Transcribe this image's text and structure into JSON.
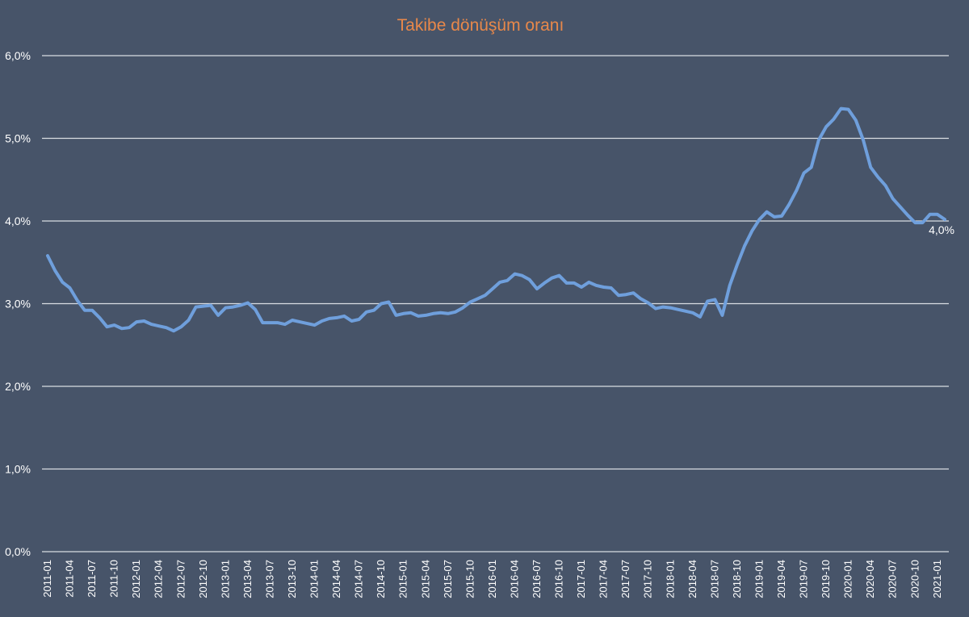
{
  "chart_data": {
    "type": "line",
    "title": "Takibe dönüşüm oranı",
    "title_color": "#e8884a",
    "line_color": "#6f9fdc",
    "background": "#475469",
    "grid": true,
    "ylim": [
      0,
      6
    ],
    "y_ticks": [
      0,
      1,
      2,
      3,
      4,
      5,
      6
    ],
    "y_tick_labels": [
      "0,0%",
      "1,0%",
      "2,0%",
      "3,0%",
      "4,0%",
      "5,0%",
      "6,0%"
    ],
    "x_tick_labels": [
      "2011-01",
      "2011-04",
      "2011-07",
      "2011-10",
      "2012-01",
      "2012-04",
      "2012-07",
      "2012-10",
      "2013-01",
      "2013-04",
      "2013-07",
      "2013-10",
      "2014-01",
      "2014-04",
      "2014-07",
      "2014-10",
      "2015-01",
      "2015-04",
      "2015-07",
      "2015-10",
      "2016-01",
      "2016-04",
      "2016-07",
      "2016-10",
      "2017-01",
      "2017-04",
      "2017-07",
      "2017-10",
      "2018-01",
      "2018-04",
      "2018-07",
      "2018-10",
      "2019-01",
      "2019-04",
      "2019-07",
      "2019-10",
      "2020-01",
      "2020-04",
      "2020-07",
      "2020-10",
      "2021-01"
    ],
    "start_month": "2011-01",
    "series": [
      {
        "values": [
          3.58,
          3.4,
          3.26,
          3.19,
          3.04,
          2.92,
          2.92,
          2.83,
          2.72,
          2.74,
          2.7,
          2.71,
          2.78,
          2.79,
          2.75,
          2.73,
          2.71,
          2.67,
          2.72,
          2.8,
          2.96,
          2.97,
          2.98,
          2.86,
          2.95,
          2.96,
          2.98,
          3.01,
          2.93,
          2.77,
          2.77,
          2.77,
          2.75,
          2.8,
          2.78,
          2.76,
          2.74,
          2.79,
          2.82,
          2.83,
          2.85,
          2.79,
          2.81,
          2.9,
          2.92,
          3.0,
          3.02,
          2.86,
          2.88,
          2.89,
          2.85,
          2.86,
          2.88,
          2.89,
          2.88,
          2.9,
          2.95,
          3.02,
          3.06,
          3.1,
          3.18,
          3.26,
          3.28,
          3.36,
          3.34,
          3.29,
          3.18,
          3.25,
          3.31,
          3.34,
          3.25,
          3.25,
          3.2,
          3.26,
          3.22,
          3.2,
          3.19,
          3.1,
          3.11,
          3.13,
          3.06,
          3.01,
          2.94,
          2.96,
          2.95,
          2.93,
          2.91,
          2.89,
          2.84,
          3.03,
          3.05,
          2.86,
          3.22,
          3.47,
          3.7,
          3.88,
          4.02,
          4.11,
          4.05,
          4.06,
          4.2,
          4.37,
          4.58,
          4.65,
          4.98,
          5.14,
          5.23,
          5.36,
          5.35,
          5.22,
          4.98,
          4.65,
          4.53,
          4.43,
          4.27,
          4.17,
          4.07,
          3.98,
          3.98,
          4.08,
          4.08,
          4.02
        ]
      }
    ],
    "annotations": [
      {
        "index": 121,
        "text": "4,0%"
      }
    ]
  }
}
